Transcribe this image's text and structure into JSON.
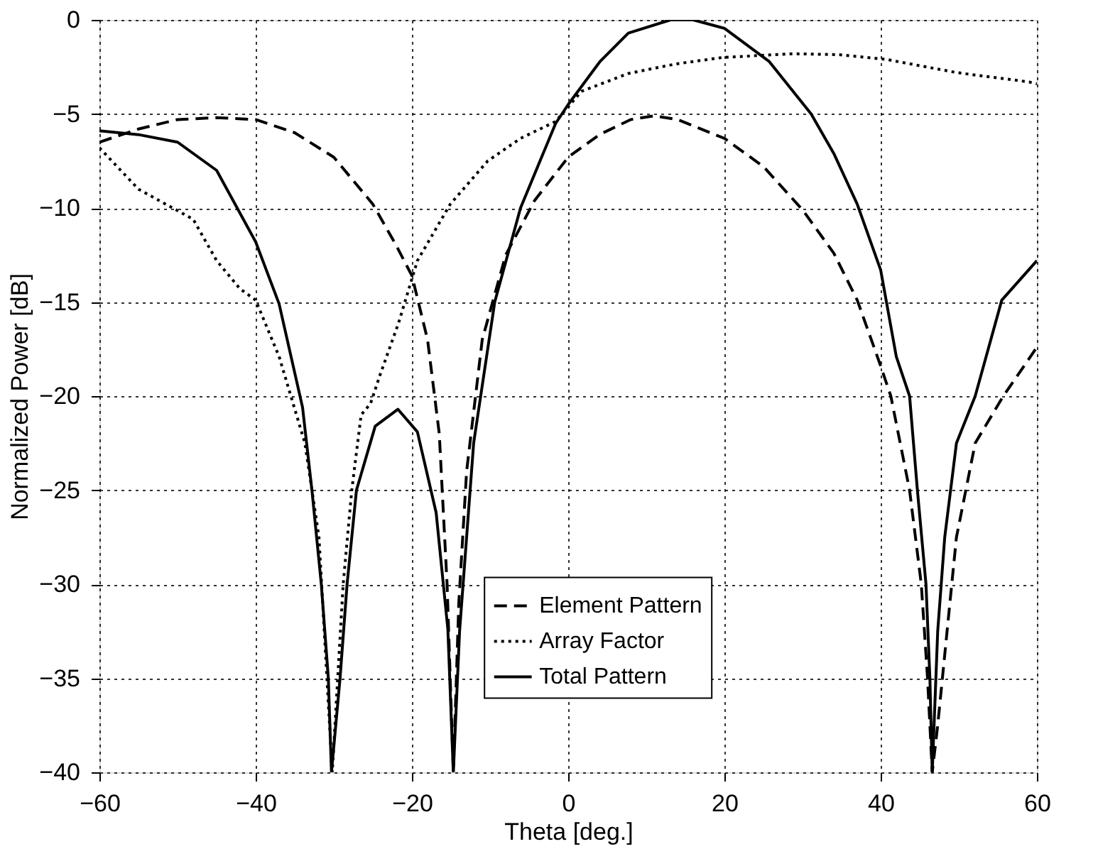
{
  "chart_data": {
    "type": "line",
    "xlabel": "Theta [deg.]",
    "ylabel": "Normalized Power [dB]",
    "xlim": [
      -60,
      60
    ],
    "ylim": [
      -40,
      0
    ],
    "xticks": [
      -60,
      -40,
      -20,
      0,
      20,
      40,
      60
    ],
    "yticks": [
      0,
      -5,
      -10,
      -15,
      -20,
      -25,
      -30,
      -35,
      -40
    ],
    "grid": true,
    "legend": "bottom right",
    "marker": "none",
    "series": [
      {
        "name": "Element Pattern",
        "color": "#000000",
        "line_style": "dashed",
        "x": [
          -60,
          -55,
          -50,
          -45,
          -40,
          -35,
          -30,
          -25,
          -22,
          -20,
          -18,
          -16.5,
          -15.5,
          -14.7,
          -14,
          -13,
          -11,
          -8,
          -4.3,
          0,
          4,
          8,
          11,
          14,
          20,
          25,
          30,
          34,
          37,
          40,
          41.3,
          43.7,
          45.2,
          46,
          46.6,
          47.3,
          48.5,
          49.7,
          52.1,
          55.7,
          60
        ],
        "values": [
          -6.5,
          -5.8,
          -5.3,
          -5.2,
          -5.3,
          -6.0,
          -7.3,
          -9.8,
          -12,
          -13.6,
          -17,
          -22,
          -30,
          -40,
          -31,
          -24,
          -17,
          -12.5,
          -9.6,
          -7.3,
          -6.1,
          -5.3,
          -5.1,
          -5.3,
          -6.3,
          -7.8,
          -10.1,
          -12.4,
          -14.9,
          -18.4,
          -20,
          -25,
          -30,
          -35,
          -40,
          -37.5,
          -32.5,
          -27.5,
          -22.5,
          -20,
          -17.4
        ]
      },
      {
        "name": "Array Factor",
        "color": "#000000",
        "line_style": "dotted",
        "x": [
          -60,
          -55,
          -48,
          -45,
          -42,
          -40,
          -37,
          -33.7,
          -31.9,
          -30.2,
          -28.8,
          -27.7,
          -26.5,
          -25.3,
          -24.1,
          -21.7,
          -19.3,
          -15.1,
          -10.3,
          -6.1,
          -1.6,
          1.7,
          7.7,
          13.7,
          19.7,
          28.7,
          34.7,
          40.7,
          49.7,
          59,
          60
        ],
        "values": [
          -6.8,
          -9.0,
          -10.6,
          -12.8,
          -14.3,
          -14.9,
          -17.9,
          -22.5,
          -27.5,
          -40,
          -30,
          -25,
          -21,
          -20.4,
          -18.9,
          -16.1,
          -12.8,
          -9.8,
          -7.5,
          -6.3,
          -5.4,
          -3.8,
          -2.85,
          -2.35,
          -2.0,
          -1.8,
          -1.85,
          -2.1,
          -2.8,
          -3.3,
          -3.4
        ]
      },
      {
        "name": "Total Pattern",
        "color": "#000000",
        "line_style": "solid",
        "x": [
          -60,
          -55,
          -50,
          -45,
          -40,
          -37,
          -34,
          -32.8,
          -31.6,
          -30.7,
          -30.3,
          -29.2,
          -28.3,
          -27.1,
          -24.7,
          -21.8,
          -19.3,
          -16.9,
          -15.4,
          -14.7,
          -13.9,
          -13.0,
          -12.1,
          -11.2,
          -9.4,
          -6.1,
          -1.6,
          0,
          4.1,
          7.7,
          13.1,
          16,
          20,
          25.7,
          31.1,
          34,
          37,
          40,
          42,
          43.7,
          44.7,
          45.8,
          46.3,
          46.6,
          47.3,
          48.2,
          49.7,
          52.1,
          55.5,
          60
        ],
        "values": [
          -5.9,
          -6.1,
          -6.5,
          -8.0,
          -11.8,
          -15.1,
          -20.6,
          -25,
          -30,
          -35,
          -40,
          -35,
          -30,
          -25,
          -21.6,
          -20.7,
          -21.9,
          -26.2,
          -32.4,
          -40,
          -32.5,
          -27.5,
          -22.5,
          -20,
          -15,
          -10,
          -5.5,
          -4.5,
          -2.2,
          -0.7,
          0,
          0,
          -0.45,
          -2.2,
          -5,
          -7.1,
          -9.8,
          -13.3,
          -17.9,
          -20,
          -25,
          -30,
          -35,
          -40,
          -32.5,
          -27.5,
          -22.5,
          -20,
          -14.9,
          -12.8
        ]
      }
    ]
  }
}
